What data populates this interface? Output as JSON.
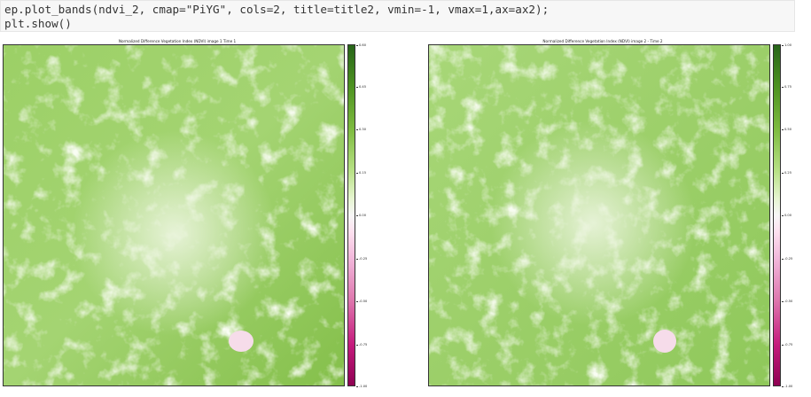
{
  "code_cell": {
    "lines": [
      "ep.plot_bands(ndvi_2, cmap=\"PiYG\", cols=2, title=title2, vmin=-1, vmax=1,ax=ax2);",
      "plt.show()"
    ]
  },
  "plots": [
    {
      "title": "Normalized Difference Vegetation Index (NDVI) image 1 Time 1",
      "colorbar_ticks": [
        "0.60",
        "0.45",
        "0.30",
        "0.15",
        "0.00",
        "-0.25",
        "-0.50",
        "-0.75",
        "-1.00"
      ]
    },
    {
      "title": "Normalized Difference Vegetation Index (NDVI) image 2 - Time 2",
      "colorbar_ticks": [
        "1.00",
        "0.75",
        "0.50",
        "0.25",
        "0.00",
        "-0.25",
        "-0.50",
        "-0.75",
        "-1.00"
      ]
    }
  ],
  "colormap": {
    "name": "PiYG",
    "top_color": "#276419",
    "mid_color": "#f7f7f7",
    "bottom_color": "#8e0152",
    "map_base_green": "#8fc85a"
  }
}
